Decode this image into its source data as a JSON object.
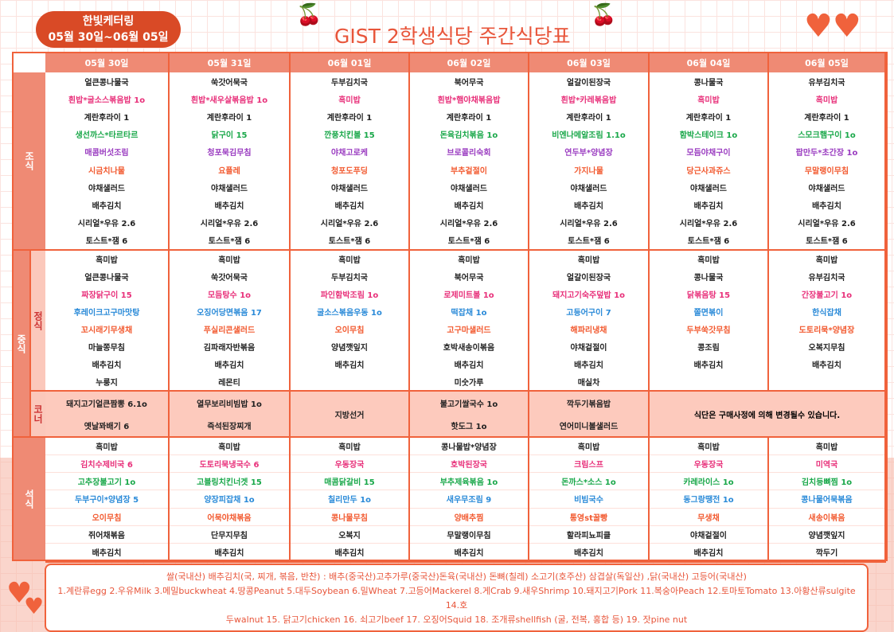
{
  "header": {
    "caterer": "한빛케터링",
    "period": "05월 30일~06월 05일",
    "title": "GIST 2학생식당 주간식당표"
  },
  "days": [
    "05월 30일",
    "05월 31일",
    "06월 01일",
    "06월 02일",
    "06월 03일",
    "06월 04일",
    "06월 05일"
  ],
  "labels": {
    "breakfast": "조식",
    "lunch": "중식",
    "lunch_main": "정식",
    "lunch_corner": "코너",
    "dinner": "석식"
  },
  "colors": {
    "black": "#222222",
    "pink": "#e8307a",
    "green": "#1aa84a",
    "purple": "#9a3cc0",
    "orange": "#f25a30",
    "blue": "#2a8ad8",
    "accent": "#f0623c",
    "header_bg": "#ef8a74"
  },
  "row_colors": {
    "breakfast": [
      "black",
      "pink",
      "black",
      "green",
      "purple",
      "orange",
      "black",
      "black",
      "black",
      "black"
    ],
    "lunch": [
      "black",
      "black",
      "pink",
      "blue",
      "orange",
      "black",
      "black",
      "black"
    ],
    "dinner": [
      "black",
      "pink",
      "green",
      "blue",
      "orange",
      "black",
      "black"
    ]
  },
  "breakfast": [
    [
      "얼큰콩나물국",
      "흰밥*굴소스볶음밥 1o",
      "계란후라이 1",
      "생선까스*타르타르",
      "매콤버섯조림",
      "시금치나물",
      "야채샐러드",
      "배추김치",
      "시리얼*우유 2.6",
      "토스트*잼 6"
    ],
    [
      "쑥갓어묵국",
      "흰밥*새우살볶음밥 1o",
      "계란후라이 1",
      "닭구이 15",
      "청포묵김무침",
      "요플레",
      "야채샐러드",
      "배추김치",
      "시리얼*우유 2.6",
      "토스트*잼 6"
    ],
    [
      "두부김치국",
      "흑미밥",
      "계란후라이 1",
      "깐풍치킨볼 15",
      "야채고로케",
      "청포도푸딩",
      "야채샐러드",
      "배추김치",
      "시리얼*우유 2.6",
      "토스트*잼 6"
    ],
    [
      "북어무국",
      "흰밥*햄야채볶음밥",
      "계란후라이 1",
      "돈육김치볶음 1o",
      "브로콜리숙회",
      "부추겉절이",
      "야채샐러드",
      "배추김치",
      "시리얼*우유 2.6",
      "토스트*잼 6"
    ],
    [
      "얼갈이된장국",
      "흰밥*카레볶음밥",
      "계란후라이 1",
      "비엔나메알조림 1.1o",
      "연두부*양념장",
      "가지나물",
      "야채샐러드",
      "배추김치",
      "시리얼*우유 2.6",
      "토스트*잼 6"
    ],
    [
      "콩나물국",
      "흑미밥",
      "계란후라이 1",
      "함박스테이크 1o",
      "모듬야채구이",
      "당근사과쥬스",
      "야채샐러드",
      "배추김치",
      "시리얼*우유 2.6",
      "토스트*잼 6"
    ],
    [
      "유부김치국",
      "흑미밥",
      "계란후라이 1",
      "스모크햄구이 1o",
      "팝만두*초간장 1o",
      "무말랭이무침",
      "야채샐러드",
      "배추김치",
      "시리얼*우유 2.6",
      "토스트*잼 6"
    ]
  ],
  "lunch": [
    [
      "흑미밥",
      "얼큰콩나물국",
      "짜장닭구이 15",
      "후레이크고구마맛탕",
      "꼬시래기무생채",
      "마늘쫑무침",
      "배추김치",
      "누룽지"
    ],
    [
      "흑미밥",
      "쑥갓어묵국",
      "모듬탕수 1o",
      "오징어당면볶음 17",
      "푸실리콘샐러드",
      "김파래자반볶음",
      "배추김치",
      "레몬티"
    ],
    [
      "흑미밥",
      "두부김치국",
      "파인함박조림 1o",
      "굴소스볶음우동 1o",
      "오이무침",
      "양념깻잎지",
      "배추김치",
      ""
    ],
    [
      "흑미밥",
      "북어무국",
      "로제미트볼 1o",
      "떡잡채 1o",
      "고구마샐러드",
      "호박새송이볶음",
      "배추김치",
      "미숫가루"
    ],
    [
      "흑미밥",
      "얼갈이된장국",
      "돼지고기숙주덮밥 1o",
      "고등어구이 7",
      "해파리냉채",
      "야채겉절이",
      "배추김치",
      "매실차"
    ],
    [
      "흑미밥",
      "콩나물국",
      "닭볶음탕 15",
      "쫄면볶이",
      "두부쑥갓무침",
      "콩조림",
      "배추김치",
      ""
    ],
    [
      "흑미밥",
      "유부김치국",
      "간장불고기 1o",
      "한식잡채",
      "도토리묵*양념장",
      "오복지무침",
      "배추김치",
      ""
    ]
  ],
  "corner": [
    [
      "돼지고기얼큰짬뽕 6.1o",
      "옛날꽈배기 6"
    ],
    [
      "열무보리비빔밥 1o",
      "즉석된장찌개"
    ],
    [
      "지방선거"
    ],
    [
      "불고기쌀국수 1o",
      "핫도그 1o"
    ],
    [
      "깍두기볶음밥",
      "연어미니볼샐러드"
    ]
  ],
  "corner_notice": "식단은 구매사정에 의해 변경될수 있습니다.",
  "dinner": [
    [
      "흑미밥",
      "김치수제비국 6",
      "고추장불고기 1o",
      "두부구이*양념장 5",
      "오이무침",
      "쥐어채볶음",
      "배추김치"
    ],
    [
      "흑미밥",
      "도토리묵냉국수 6",
      "고블링치킨너겟 15",
      "양장피잡채 1o",
      "어묵야채볶음",
      "단무지무침",
      "배추김치"
    ],
    [
      "흑미밥",
      "우동장국",
      "매콤닭갈비 15",
      "칠리만두 1o",
      "콩나물무침",
      "오복지",
      "배추김치"
    ],
    [
      "콩나물밥*양념장",
      "호박된장국",
      "부추제육볶음 1o",
      "새우무조림 9",
      "양배추찜",
      "무말랭이무침",
      "배추김치"
    ],
    [
      "흑미밥",
      "크림스프",
      "돈까스*소스 1o",
      "비빔국수",
      "통영st꿀빵",
      "할라피뇨피클",
      "배추김치"
    ],
    [
      "흑미밥",
      "우동장국",
      "카레라이스 1o",
      "동그랑땡전 1o",
      "무생채",
      "야채겉절이",
      "배추김치"
    ],
    [
      "흑미밥",
      "미역국",
      "김치등뼈찜 1o",
      "콩나물어묵볶음",
      "새송이볶음",
      "양념깻잎지",
      "깍두기"
    ]
  ],
  "footer": {
    "origin": "쌀(국내산) 배추김치(국, 찌개, 볶음, 반찬) : 배추(중국산)고추가루(중국산)돈육(국내산) 돈뼈(칠레) 소고기(호주산) 삼겹살(독일산) ,닭(국내산) 고등어(국내산)",
    "allergens_1": "1.계란류egg 2.우유Milk 3.메밀buckwheat 4.땅콩Peanut 5.대두Soybean 6.밀Wheat 7.고등어Mackerel 8.게Crab 9.새우Shrimp 10.돼지고기Pork 11.복숭아Peach 12.토마토Tomato 13.아황산류sulgite 14.호",
    "allergens_2": "두walnut 15. 닭고기chicken 16. 쇠고기beef 17. 오징어Squid 18. 조개류shellfish (굴, 전복, 홍합 등) 19. 잣pine nut"
  }
}
